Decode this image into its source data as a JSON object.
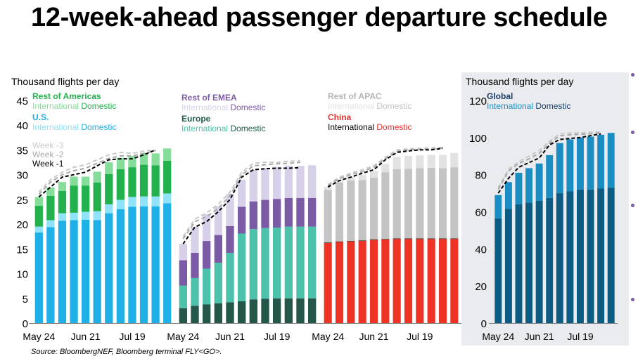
{
  "title": "12-week-ahead passenger departure schedule",
  "source": "Source: BloombergNEF, Bloomberg terminal FLY<GO>.",
  "chart_data": [
    {
      "type": "bar",
      "panel": "Americas",
      "ylabel": "Thousand flights per day",
      "ylim": [
        0,
        45
      ],
      "yticks": [
        0,
        5,
        10,
        15,
        20,
        25,
        30,
        35,
        40,
        45
      ],
      "xticks": [
        "May 24",
        "Jun 21",
        "Jul 19"
      ],
      "legend_groups": [
        {
          "name": "Rest of Americas",
          "name_color": "#22b14c",
          "sub": [
            "International",
            "Domestic"
          ],
          "sub_colors": [
            "#86dd9a",
            "#22b14c"
          ]
        },
        {
          "name": "U.S.",
          "name_color": "#1fb0e8",
          "sub": [
            "International",
            "Domestic"
          ],
          "sub_colors": [
            "#8fe2f7",
            "#1fb0e8"
          ]
        }
      ],
      "week_legend": [
        {
          "name": "Week -3",
          "color": "#c8c8c8"
        },
        {
          "name": "Week -2",
          "color": "#a9a9a9"
        },
        {
          "name": "Week -1",
          "color": "#000000"
        }
      ],
      "series": [
        {
          "name": "U.S. Domestic",
          "color": "#1fb0e8",
          "values": [
            18.3,
            19.4,
            20.7,
            20.8,
            20.9,
            20.8,
            22.2,
            23.0,
            23.5,
            23.6,
            23.6,
            24.2
          ]
        },
        {
          "name": "U.S. International",
          "color": "#8fe2f7",
          "values": [
            1.2,
            1.4,
            1.5,
            1.5,
            1.6,
            1.8,
            1.8,
            1.9,
            2.0,
            2.0,
            2.0,
            2.0
          ]
        },
        {
          "name": "Rest of Americas Domestic",
          "color": "#22b14c",
          "values": [
            4.2,
            4.9,
            4.5,
            5.5,
            5.3,
            5.8,
            6.1,
            6.2,
            6.0,
            6.4,
            6.3,
            6.6
          ]
        },
        {
          "name": "Rest of Americas International",
          "color": "#86dd9a",
          "values": [
            1.8,
            1.7,
            1.8,
            1.8,
            1.8,
            2.2,
            2.4,
            2.3,
            2.3,
            2.4,
            2.4,
            2.5
          ]
        }
      ],
      "week_lines": [
        {
          "name": "Week -3",
          "values": [
            26.5,
            29.0,
            30.5,
            31.5,
            32.0,
            33.0,
            34.0,
            34.5,
            34.3,
            34.8,
            35.0,
            null
          ]
        },
        {
          "name": "Week -2",
          "values": [
            26.0,
            28.5,
            30.0,
            30.8,
            31.3,
            32.3,
            33.3,
            33.8,
            33.8,
            34.3,
            34.8,
            null
          ]
        },
        {
          "name": "Week -1",
          "values": [
            25.5,
            27.5,
            29.5,
            30.0,
            30.5,
            31.8,
            33.0,
            33.2,
            33.2,
            34.0,
            35.0,
            null
          ]
        }
      ]
    },
    {
      "type": "bar",
      "panel": "EMEA",
      "xticks": [
        "May 24",
        "Jun 21",
        "Jul 19"
      ],
      "legend_groups": [
        {
          "name": "Rest of EMEA",
          "name_color": "#7b5aa6",
          "sub": [
            "International",
            "Domestic"
          ],
          "sub_colors": [
            "#d8d0e8",
            "#7b5aa6"
          ]
        },
        {
          "name": "Europe",
          "name_color": "#1e5b4a",
          "sub": [
            "International",
            "Domestic"
          ],
          "sub_colors": [
            "#4cc2aa",
            "#1e5b4a"
          ]
        }
      ],
      "series": [
        {
          "name": "Europe Domestic",
          "color": "#24574a",
          "values": [
            3.0,
            3.5,
            3.8,
            4.0,
            4.2,
            4.4,
            4.8,
            4.9,
            5.0,
            5.0,
            5.0,
            5.0
          ]
        },
        {
          "name": "Europe International",
          "color": "#4cc2aa",
          "values": [
            4.6,
            5.6,
            7.2,
            8.2,
            10.0,
            13.7,
            14.2,
            14.3,
            14.3,
            14.5,
            14.5,
            14.5
          ]
        },
        {
          "name": "Rest of EMEA Domestic",
          "color": "#7b5aa6",
          "values": [
            5.1,
            5.1,
            5.6,
            5.6,
            5.4,
            5.4,
            5.6,
            5.7,
            5.8,
            5.8,
            5.8,
            5.8
          ]
        },
        {
          "name": "Rest of EMEA International",
          "color": "#d8d0e8",
          "values": [
            3.3,
            5.3,
            5.4,
            5.8,
            6.5,
            5.5,
            6.4,
            6.4,
            6.5,
            6.5,
            6.5,
            6.6
          ]
        }
      ],
      "week_lines": [
        {
          "name": "Week -3",
          "values": [
            17.5,
            21.0,
            22.3,
            24.0,
            26.5,
            30.5,
            32.3,
            32.5,
            32.5,
            32.7,
            32.8,
            null
          ]
        },
        {
          "name": "Week -2",
          "values": [
            17.0,
            20.5,
            21.5,
            23.2,
            25.8,
            30.0,
            31.8,
            32.0,
            32.2,
            32.3,
            32.5,
            null
          ]
        },
        {
          "name": "Week -1",
          "values": [
            16.0,
            19.4,
            20.5,
            22.5,
            25.0,
            29.5,
            31.0,
            31.2,
            31.3,
            31.3,
            31.4,
            null
          ]
        }
      ]
    },
    {
      "type": "bar",
      "panel": "APAC",
      "xticks": [
        "May 24",
        "Jun 21",
        "Jul 19"
      ],
      "legend_groups": [
        {
          "name": "Rest of APAC",
          "name_color": "#b5b5b5",
          "sub": [
            "International",
            "Domestic"
          ],
          "sub_colors": [
            "#e2e2e2",
            "#c4c4c4"
          ]
        },
        {
          "name": "China",
          "name_color": "#e8302a",
          "sub": [
            "International",
            "Domestic"
          ],
          "sub_colors": [
            "#000000",
            "#e8302a"
          ]
        }
      ],
      "series": [
        {
          "name": "China Domestic",
          "color": "#ee3224",
          "values": [
            16.2,
            16.4,
            16.5,
            16.6,
            16.8,
            16.9,
            17.0,
            17.0,
            17.0,
            17.0,
            17.0,
            17.0
          ]
        },
        {
          "name": "China International",
          "color": "#111111",
          "values": [
            0.1,
            0.1,
            0.1,
            0.1,
            0.1,
            0.1,
            0.1,
            0.1,
            0.1,
            0.1,
            0.1,
            0.1
          ]
        },
        {
          "name": "Rest of APAC Domestic",
          "color": "#c4c4c4",
          "values": [
            10.6,
            11.9,
            12.2,
            12.2,
            12.5,
            13.5,
            14.0,
            14.1,
            14.2,
            14.3,
            14.2,
            14.4
          ]
        },
        {
          "name": "Rest of APAC International",
          "color": "#e2e2e2",
          "values": [
            0.6,
            0.6,
            0.8,
            1.1,
            1.3,
            1.7,
            2.5,
            2.6,
            2.6,
            2.6,
            2.7,
            2.9
          ]
        }
      ],
      "week_lines": [
        {
          "name": "Week -3",
          "values": [
            28.0,
            29.5,
            30.3,
            31.0,
            31.8,
            33.5,
            35.0,
            35.2,
            35.3,
            35.4,
            35.5,
            null
          ]
        },
        {
          "name": "Week -2",
          "values": [
            27.8,
            29.2,
            30.0,
            30.6,
            31.5,
            33.2,
            34.7,
            35.0,
            35.1,
            35.2,
            35.4,
            null
          ]
        },
        {
          "name": "Week -1",
          "values": [
            27.5,
            28.8,
            29.5,
            30.3,
            31.0,
            33.0,
            34.5,
            34.8,
            35.0,
            35.0,
            35.3,
            null
          ]
        }
      ]
    },
    {
      "type": "bar",
      "panel": "Global",
      "ylabel": "Thousand flights per day",
      "ylim": [
        0,
        120
      ],
      "yticks": [
        0,
        20,
        40,
        60,
        80,
        100,
        120
      ],
      "xticks": [
        "May 24",
        "Jun 21",
        "Jul 19"
      ],
      "legend_groups": [
        {
          "name": "Global",
          "name_color": "#1b3f6b",
          "sub": [
            "International",
            "Domestic"
          ],
          "sub_colors": [
            "#1a8ec2",
            "#1b3f6b"
          ]
        }
      ],
      "series": [
        {
          "name": "Global Domestic",
          "color": "#0b5b82",
          "values": [
            56.5,
            61.5,
            64.0,
            65.0,
            66.0,
            67.5,
            70.0,
            71.0,
            72.0,
            72.0,
            72.5,
            73.0
          ]
        },
        {
          "name": "Global International",
          "color": "#1a8ec2",
          "values": [
            12.5,
            14.5,
            17.0,
            18.5,
            20.0,
            23.0,
            27.0,
            28.0,
            28.0,
            28.5,
            29.0,
            29.5
          ]
        }
      ],
      "week_lines": [
        {
          "name": "Week -3",
          "values": [
            73.0,
            83.0,
            87.0,
            90.0,
            93.0,
            98.0,
            102.0,
            102.5,
            102.5,
            102.8,
            103.0,
            null
          ]
        },
        {
          "name": "Week -2",
          "values": [
            72.0,
            82.0,
            86.0,
            88.5,
            91.5,
            97.0,
            101.0,
            101.5,
            101.8,
            102.0,
            102.5,
            null
          ]
        },
        {
          "name": "Week -1",
          "values": [
            70.0,
            78.0,
            84.0,
            86.5,
            89.0,
            96.0,
            99.0,
            99.5,
            100.0,
            101.0,
            102.0,
            null
          ]
        }
      ]
    }
  ]
}
